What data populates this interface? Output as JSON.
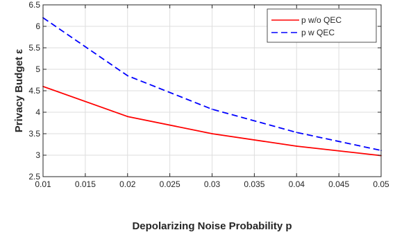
{
  "chart_data": {
    "type": "line",
    "title": "",
    "xlabel": "Depolarizing Noise Probability p",
    "ylabel": "Privacy Budget ε",
    "xlim": [
      0.01,
      0.05
    ],
    "ylim": [
      2.5,
      6.5
    ],
    "xticks": [
      "0.01",
      "0.015",
      "0.02",
      "0.025",
      "0.03",
      "0.035",
      "0.04",
      "0.045",
      "0.05"
    ],
    "yticks": [
      "2.5",
      "3",
      "3.5",
      "4",
      "4.5",
      "5",
      "5.5",
      "6",
      "6.5"
    ],
    "grid": true,
    "legend_position": "top-right",
    "series": [
      {
        "name": "p w/o QEC",
        "color": "#ff0000",
        "line_style": "solid",
        "x": [
          0.01,
          0.02,
          0.03,
          0.04,
          0.05
        ],
        "y": [
          4.6,
          3.9,
          3.5,
          3.21,
          2.99
        ]
      },
      {
        "name": "p w QEC",
        "color": "#0000ff",
        "line_style": "dashed",
        "x": [
          0.01,
          0.02,
          0.03,
          0.04,
          0.05
        ],
        "y": [
          6.2,
          4.85,
          4.07,
          3.53,
          3.11
        ]
      }
    ]
  }
}
